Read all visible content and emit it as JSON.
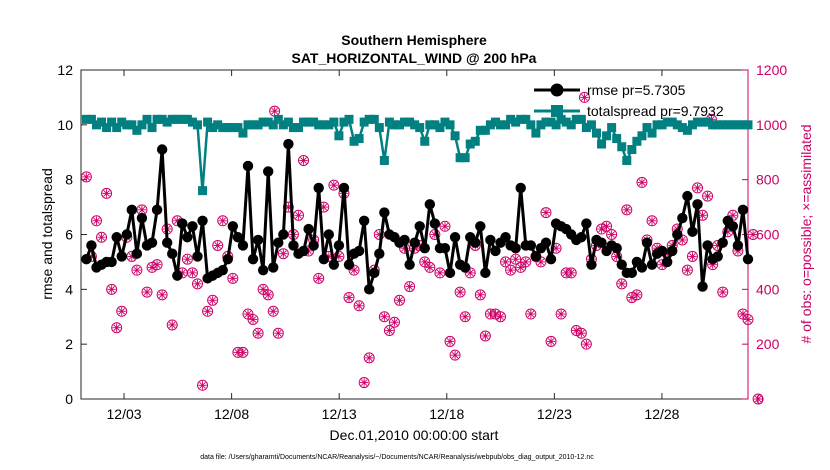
{
  "chart_data": {
    "type": "line",
    "title": "Southern Hemisphere",
    "subtitle": "SAT_HORIZONTAL_WIND @ 200 hPa",
    "xlabel": "Dec.01,2010 00:00:00 start",
    "ylabel_left": "rmse and totalspread",
    "ylabel_right": "# of obs: o=possible; ×=assimilated",
    "footnote": "data file: /Users/gharamti/Documents/NCAR/Reanalysis/~/Documents/NCAR/Reanalysis/webpub/obs_diag_output_2010-12.nc",
    "xlim": [
      1,
      32
    ],
    "ylim_left": [
      0,
      12
    ],
    "ylim_right": [
      0,
      1200
    ],
    "x_ticks": [
      3,
      8,
      13,
      18,
      23,
      28
    ],
    "x_tick_labels": [
      "12/03",
      "12/08",
      "12/13",
      "12/18",
      "12/23",
      "12/28"
    ],
    "y_ticks_left": [
      0,
      2,
      4,
      6,
      8,
      10,
      12
    ],
    "y_tick_labels_left": [
      "0",
      "2",
      "4",
      "6",
      "8",
      "10",
      "12"
    ],
    "y_ticks_right": [
      0,
      200,
      400,
      600,
      800,
      1000,
      1200
    ],
    "y_tick_labels_right": [
      "0",
      "200",
      "400",
      "600",
      "800",
      "1000",
      "1200"
    ],
    "legend": {
      "position": "top-right",
      "entries": [
        "rmse pr=5.7305",
        "totalspread pr=9.7932"
      ]
    },
    "colors": {
      "rmse": "#000000",
      "totalspread": "#008080",
      "obs": "#cc0066",
      "axis": "#262626"
    },
    "rmse": [
      5.1,
      5.6,
      4.8,
      4.9,
      5.0,
      5.0,
      5.9,
      5.2,
      6.0,
      6.9,
      5.3,
      6.6,
      5.6,
      5.7,
      6.9,
      9.1,
      5.7,
      5.3,
      4.5,
      6.4,
      5.9,
      6.3,
      5.2,
      6.5,
      4.4,
      4.5,
      4.6,
      4.7,
      5.1,
      6.3,
      5.9,
      5.6,
      8.5,
      5.1,
      5.8,
      4.7,
      8.3,
      4.8,
      5.7,
      6.0,
      9.3,
      5.6,
      5.3,
      5.4,
      6.2,
      5.6,
      7.7,
      5.1,
      6.0,
      4.9,
      5.6,
      7.7,
      4.9,
      5.3,
      5.4,
      6.5,
      4.0,
      4.6,
      5.3,
      6.8,
      6.0,
      5.9,
      5.7,
      5.8,
      4.9,
      5.7,
      6.3,
      5.5,
      7.1,
      6.4,
      5.5,
      5.5,
      4.6,
      5.9,
      4.9,
      4.8,
      5.9,
      5.7,
      6.3,
      4.6,
      5.8,
      5.4,
      5.7,
      5.9,
      5.6,
      5.5,
      7.7,
      5.6,
      5.6,
      5.2,
      5.5,
      5.7,
      5.1,
      6.4,
      6.3,
      6.2,
      6.0,
      5.8,
      5.9,
      6.4,
      4.9,
      5.8,
      5.7,
      5.4,
      5.6,
      5.5,
      4.9,
      4.6,
      4.6,
      5.0,
      4.8,
      5.7,
      4.9,
      5.3,
      5.4,
      5.0,
      5.4,
      6.0,
      6.6,
      7.4,
      6.1,
      7.1,
      4.1,
      5.6,
      5.1,
      5.2,
      5.7,
      6.5,
      6.3,
      5.6,
      6.9,
      5.1
    ],
    "totalspread": [
      10.2,
      10.2,
      10.0,
      10.1,
      9.9,
      10.1,
      9.9,
      10.1,
      10.0,
      10.0,
      9.8,
      10.0,
      10.2,
      9.9,
      10.2,
      10.2,
      10.1,
      10.2,
      10.2,
      10.2,
      10.2,
      10.1,
      10.0,
      7.6,
      10.1,
      9.9,
      10.0,
      9.9,
      9.9,
      9.9,
      9.9,
      9.7,
      10.0,
      10.0,
      10.0,
      10.1,
      10.1,
      10.0,
      10.2,
      10.0,
      10.1,
      9.9,
      9.9,
      10.1,
      10.1,
      10.1,
      10.0,
      10.0,
      10.0,
      10.1,
      9.6,
      10.1,
      10.2,
      9.4,
      9.5,
      10.1,
      10.2,
      10.2,
      9.9,
      8.7,
      10.1,
      10.0,
      10.0,
      10.1,
      10.1,
      10.0,
      9.9,
      9.4,
      10.0,
      10.0,
      9.9,
      10.1,
      10.0,
      9.6,
      8.8,
      8.8,
      9.3,
      9.4,
      9.8,
      9.8,
      10.0,
      10.1,
      10.0,
      10.0,
      10.2,
      10.1,
      10.2,
      10.2,
      10.0,
      9.7,
      10.0,
      10.1,
      10.1,
      10.0,
      10.2,
      10.1,
      10.0,
      10.2,
      10.2,
      9.9,
      10.0,
      9.7,
      9.3,
      9.6,
      9.9,
      9.5,
      9.2,
      8.7,
      9.1,
      9.4,
      9.6,
      9.9,
      9.7,
      10.0,
      10.0,
      10.1,
      10.1,
      10.0,
      9.9,
      9.8,
      10.0,
      10.1,
      10.1,
      10.1,
      10.0,
      10.0,
      10.0,
      10.0,
      10.0,
      10.0,
      10.0,
      10.0
    ],
    "obs": [
      810,
      520,
      650,
      590,
      750,
      400,
      260,
      320,
      590,
      520,
      470,
      690,
      390,
      480,
      490,
      380,
      620,
      270,
      650,
      460,
      510,
      460,
      420,
      50,
      320,
      360,
      560,
      650,
      520,
      440,
      170,
      170,
      310,
      290,
      240,
      400,
      380,
      320,
      240,
      530,
      700,
      600,
      670,
      870,
      540,
      580,
      440,
      700,
      520,
      780,
      520,
      750,
      370,
      470,
      340,
      60,
      150,
      470,
      600,
      300,
      250,
      280,
      360,
      550,
      410,
      550,
      560,
      500,
      480,
      600,
      460,
      630,
      210,
      160,
      390,
      300,
      460,
      560,
      380,
      230,
      310,
      310,
      300,
      500,
      470,
      510,
      480,
      500,
      310,
      520,
      500,
      680,
      210,
      550,
      310,
      460,
      460,
      250,
      240,
      200,
      510,
      560,
      620,
      630,
      600,
      520,
      420,
      690,
      370,
      380,
      790,
      580,
      650,
      550,
      490,
      530,
      560,
      620,
      580,
      470,
      520,
      770,
      670,
      740,
      490,
      560,
      390,
      610,
      670,
      540,
      310,
      290,
      600,
      0
    ],
    "obs_outliers": [
      {
        "x": 10.0,
        "y": 1050
      },
      {
        "x": 24.4,
        "y": 1100
      },
      {
        "x": 30.3,
        "y": 1020
      }
    ]
  }
}
